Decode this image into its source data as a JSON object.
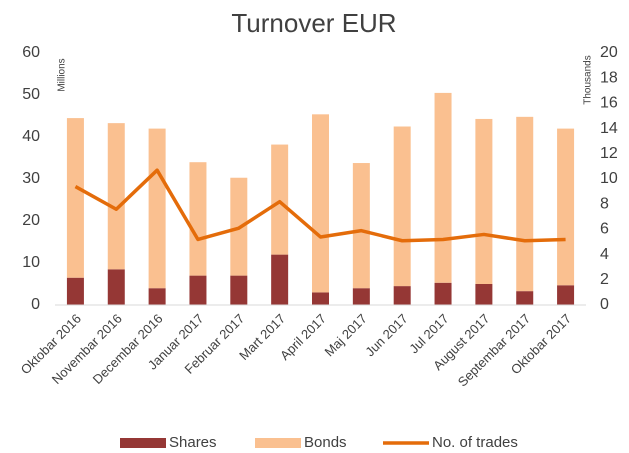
{
  "chart_data": {
    "type": "bar",
    "stacked": true,
    "title": "Turnover EUR",
    "ylabel": "Millions",
    "y2label": "Thousands",
    "categories": [
      "Oktobar 2016",
      "Novembar 2016",
      "Decembar 2016",
      "Januar 2017",
      "Februar 2017",
      "Mart 2017",
      "April 2017",
      "Maj 2017",
      "Jun 2017",
      "Jul 2017",
      "August 2017",
      "Septembar 2017",
      "Oktobar 2017"
    ],
    "series": [
      {
        "name": "Shares",
        "type": "bar",
        "color": "#953735",
        "values": [
          6.5,
          8.5,
          4,
          7,
          7,
          12,
          3,
          4,
          4.5,
          5.3,
          5,
          3.3,
          4.7
        ]
      },
      {
        "name": "Bonds",
        "type": "bar",
        "color": "#fac090",
        "values": [
          38,
          34.8,
          38,
          27,
          23.3,
          26.2,
          42.4,
          29.8,
          38,
          45.2,
          39.3,
          41.5,
          37.3
        ]
      },
      {
        "name": "No. of trades",
        "type": "line",
        "axis": "y2",
        "color": "#e46c0a",
        "values": [
          9.4,
          7.6,
          10.7,
          5.2,
          6.1,
          8.2,
          5.4,
          5.9,
          5.1,
          5.2,
          5.6,
          5.1,
          5.2
        ]
      }
    ],
    "ylim": [
      0,
      60
    ],
    "yticks": [
      0,
      10,
      20,
      30,
      40,
      50,
      60
    ],
    "y2lim": [
      0,
      20
    ],
    "y2ticks": [
      0,
      2,
      4,
      6,
      8,
      10,
      12,
      14,
      16,
      18,
      20
    ],
    "legend": "bottom"
  }
}
